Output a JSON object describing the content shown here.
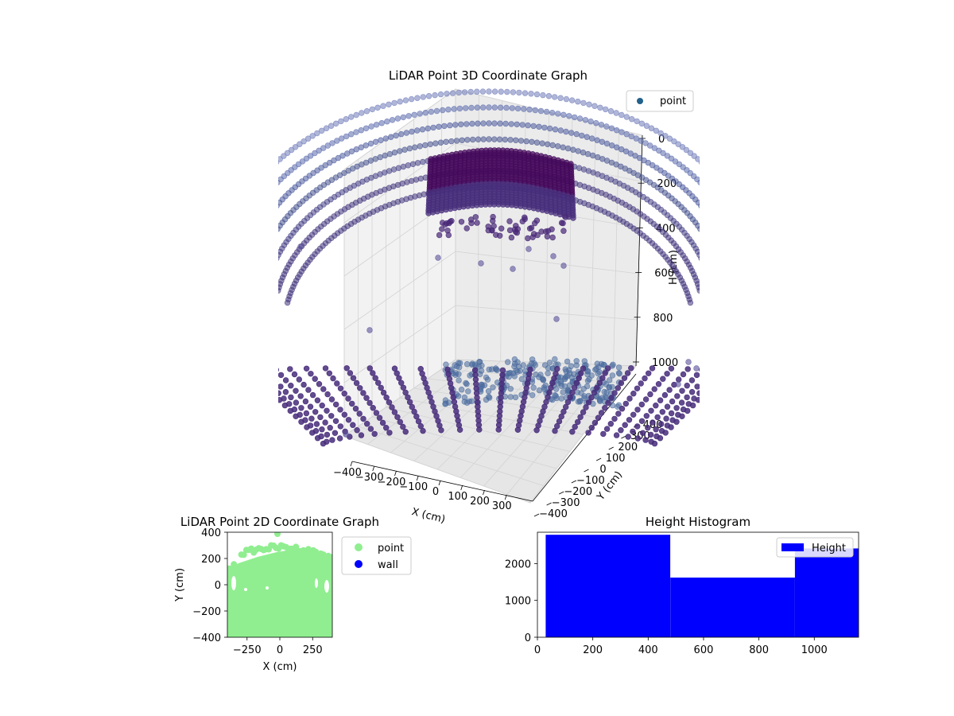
{
  "chart_data": [
    {
      "type": "scatter",
      "title": "LiDAR Point 3D Coordinate Graph",
      "xlabel": "X (cm)",
      "ylabel": "Y (cm)",
      "zlabel": "H (cm)",
      "xlim": [
        -400,
        400
      ],
      "ylim": [
        -400,
        400
      ],
      "zlim": [
        0,
        1000
      ],
      "z_inverted": true,
      "x_ticks": [
        "−400",
        "−300",
        "−200",
        "−100",
        "0",
        "100",
        "200",
        "300"
      ],
      "y_ticks": [
        "−400",
        "−300",
        "−200",
        "−100",
        "0",
        "100",
        "200",
        "300",
        "400"
      ],
      "z_ticks": [
        "0",
        "200",
        "400",
        "600",
        "800",
        "1000"
      ],
      "legend": [
        {
          "name": "point",
          "color": "#21618c"
        }
      ],
      "legend_placement": "top-right",
      "colormap": "viridis (purple range)",
      "grid": true
    },
    {
      "type": "scatter",
      "title": "LiDAR Point 2D Coordinate Graph",
      "xlabel": "X (cm)",
      "ylabel": "Y (cm)",
      "xlim": [
        -400,
        400
      ],
      "ylim": [
        -400,
        400
      ],
      "x_ticks": [
        "−250",
        "0",
        "250"
      ],
      "y_ticks": [
        "400",
        "200",
        "0",
        "−200",
        "−400"
      ],
      "series": [
        {
          "name": "point",
          "color": "#90ee90"
        },
        {
          "name": "wall",
          "color": "#0000ff"
        }
      ],
      "legend_placement": "outside-right"
    },
    {
      "type": "bar",
      "title": "Height Histogram",
      "xlim": [
        0,
        1160
      ],
      "ylim": [
        0,
        2850
      ],
      "x_ticks": [
        "0",
        "200",
        "400",
        "600",
        "800",
        "1000"
      ],
      "y_ticks": [
        "2000",
        "1000",
        "0"
      ],
      "bins": [
        {
          "start": 30,
          "end": 480,
          "count": 2780
        },
        {
          "start": 480,
          "end": 930,
          "count": 1620
        },
        {
          "start": 930,
          "end": 1160,
          "count": 2410
        }
      ],
      "series": [
        {
          "name": "Height",
          "color": "#0000ff"
        }
      ],
      "legend_placement": "upper right"
    }
  ]
}
